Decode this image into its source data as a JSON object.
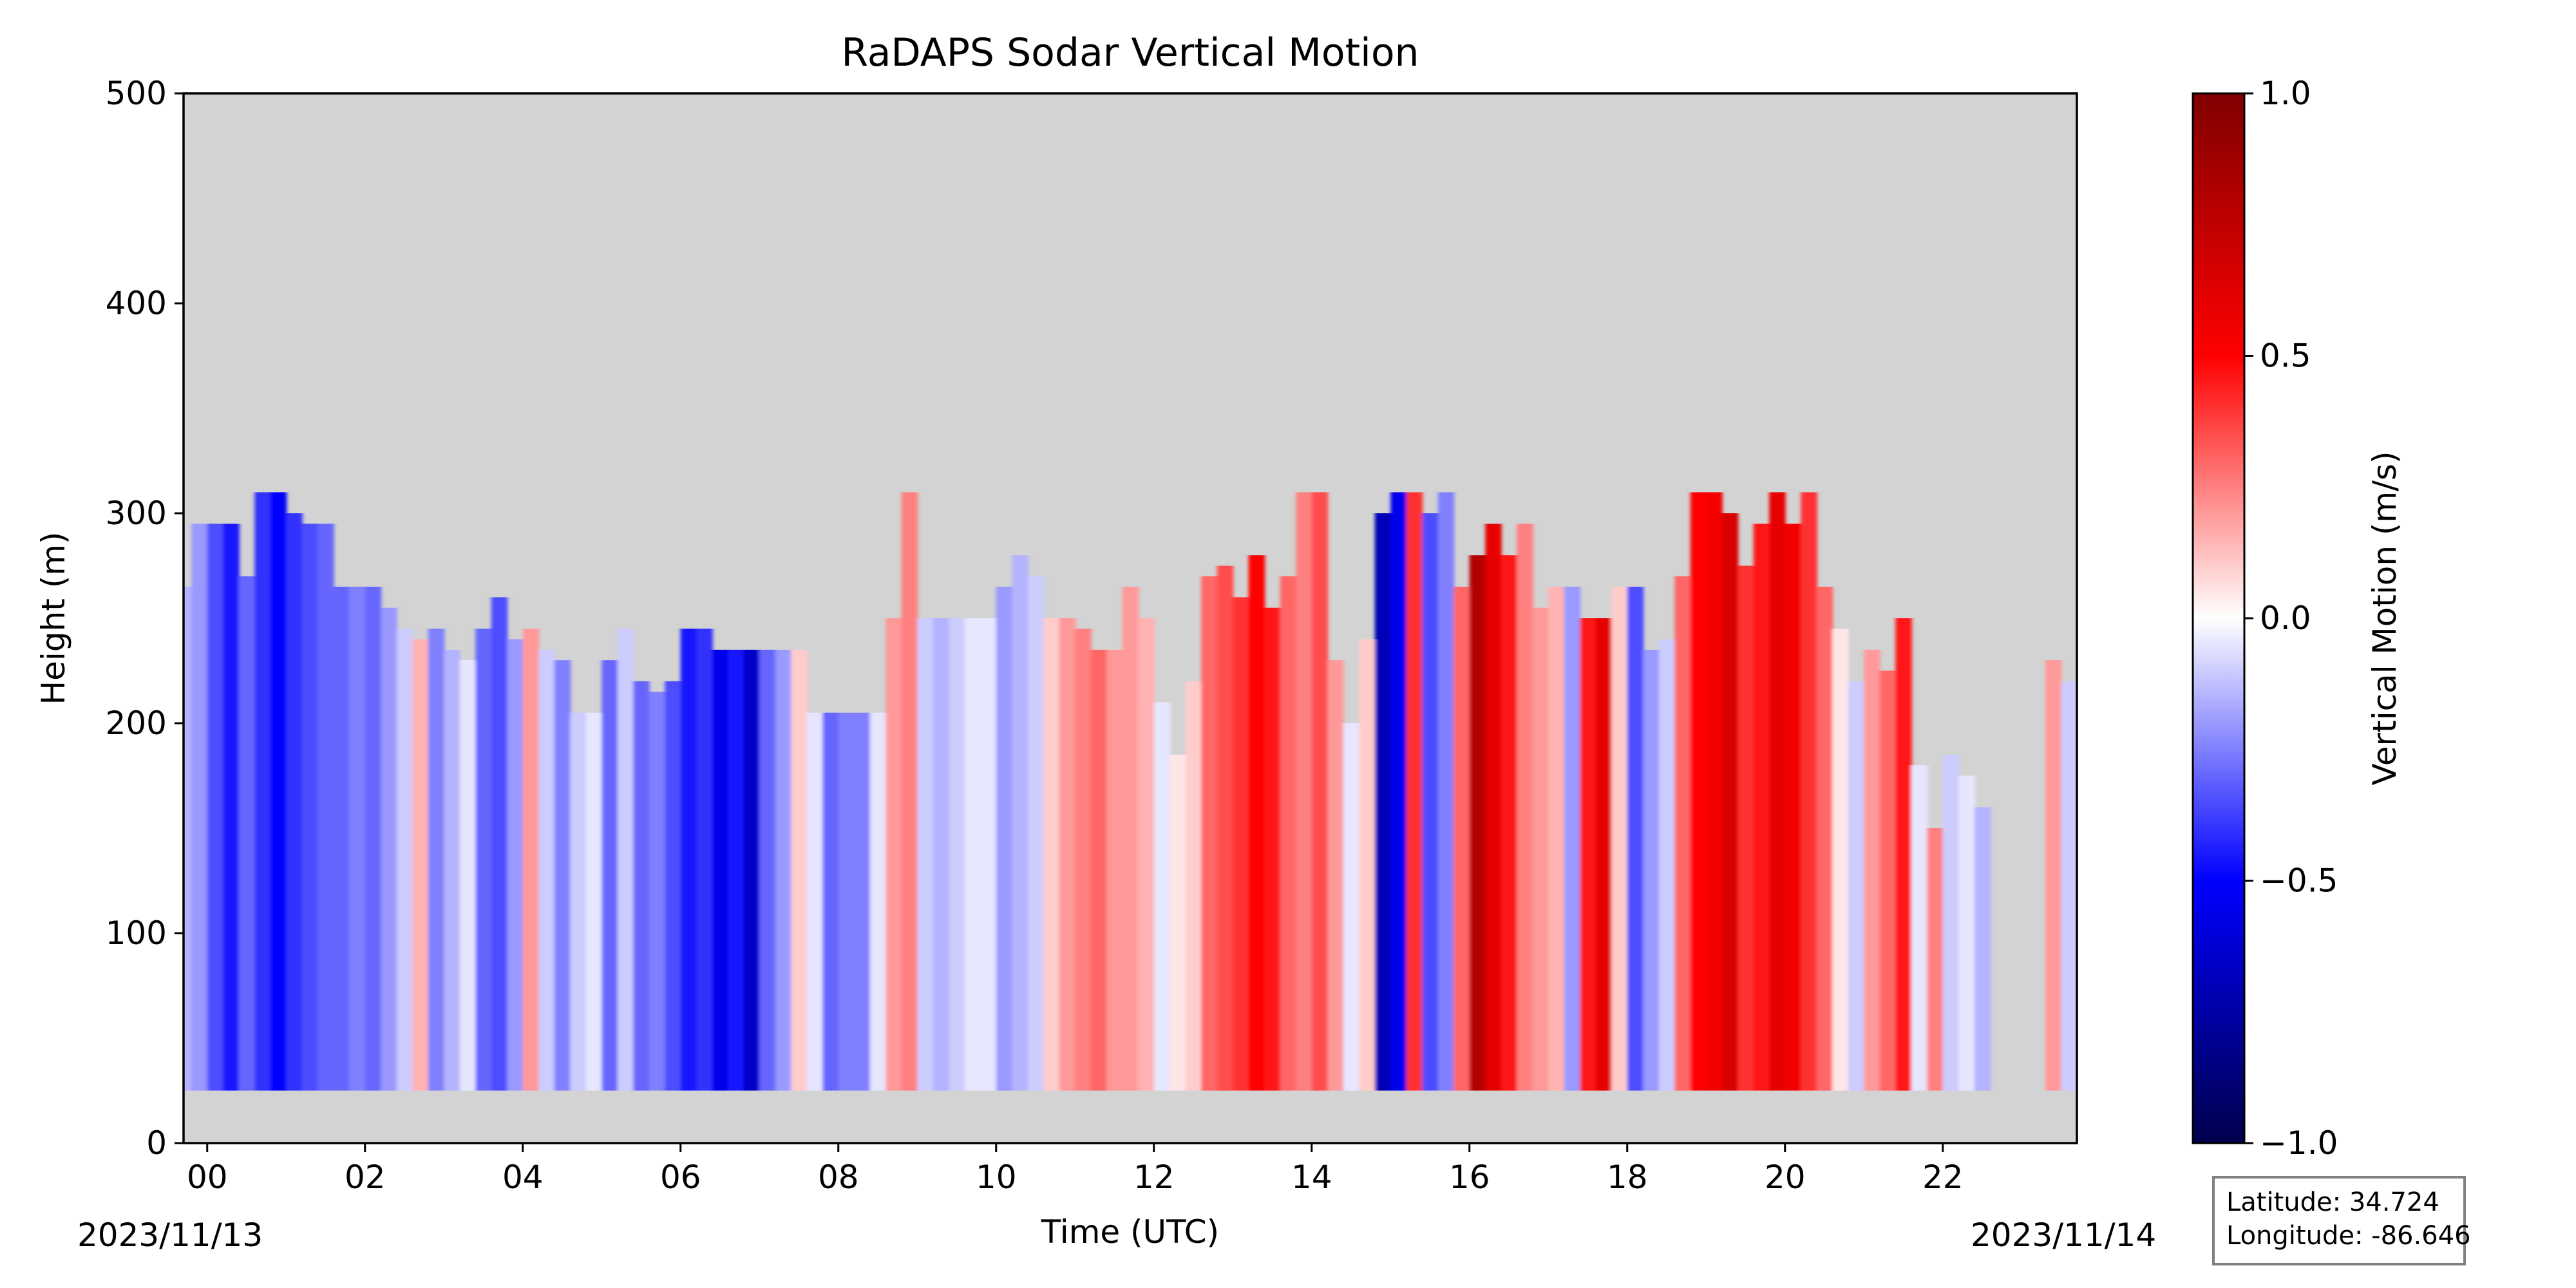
{
  "chart_data": {
    "type": "heatmap",
    "title": "RaDAPS Sodar Vertical Motion",
    "xlabel": "Time (UTC)",
    "ylabel": "Height (m)",
    "x_ticks": [
      "00",
      "02",
      "04",
      "06",
      "08",
      "10",
      "12",
      "14",
      "16",
      "18",
      "20",
      "22"
    ],
    "x_tick_hours": [
      0,
      2,
      4,
      6,
      8,
      10,
      12,
      14,
      16,
      18,
      20,
      22
    ],
    "xlim_hours": [
      -0.3,
      23.7
    ],
    "start_date": "2023/11/13",
    "end_date": "2023/11/14",
    "y_ticks": [
      0,
      100,
      200,
      300,
      400,
      500
    ],
    "ylim": [
      0,
      500
    ],
    "colorbar": {
      "label": "Vertical Motion (m/s)",
      "ticks": [
        "1.0",
        "0.5",
        "0.0",
        "−0.5",
        "−1.0"
      ],
      "tick_values": [
        1.0,
        0.5,
        0.0,
        -0.5,
        -1.0
      ],
      "range": [
        -1.0,
        1.0
      ],
      "colormap": "seismic",
      "colors": [
        "#00004c",
        "#0000ff",
        "#ffffff",
        "#ff0000",
        "#800000"
      ]
    },
    "background_color": "#d3d3d3",
    "data_bottom_m": 25,
    "data_gaps_hours": [
      [
        22.5,
        23.4
      ]
    ],
    "columns": [
      {
        "t": -0.3,
        "top": 265,
        "v": -0.15
      },
      {
        "t": -0.1,
        "top": 295,
        "v": -0.2
      },
      {
        "t": 0.1,
        "top": 295,
        "v": -0.35
      },
      {
        "t": 0.3,
        "top": 295,
        "v": -0.45
      },
      {
        "t": 0.5,
        "top": 270,
        "v": -0.3
      },
      {
        "t": 0.7,
        "top": 310,
        "v": -0.4
      },
      {
        "t": 0.9,
        "top": 310,
        "v": -0.5
      },
      {
        "t": 1.1,
        "top": 300,
        "v": -0.4
      },
      {
        "t": 1.3,
        "top": 295,
        "v": -0.35
      },
      {
        "t": 1.5,
        "top": 295,
        "v": -0.3
      },
      {
        "t": 1.7,
        "top": 265,
        "v": -0.3
      },
      {
        "t": 1.9,
        "top": 265,
        "v": -0.25
      },
      {
        "t": 2.1,
        "top": 265,
        "v": -0.3
      },
      {
        "t": 2.3,
        "top": 255,
        "v": -0.2
      },
      {
        "t": 2.5,
        "top": 245,
        "v": -0.1
      },
      {
        "t": 2.7,
        "top": 240,
        "v": 0.15
      },
      {
        "t": 2.9,
        "top": 245,
        "v": -0.25
      },
      {
        "t": 3.1,
        "top": 235,
        "v": -0.15
      },
      {
        "t": 3.3,
        "top": 230,
        "v": -0.05
      },
      {
        "t": 3.5,
        "top": 245,
        "v": -0.3
      },
      {
        "t": 3.7,
        "top": 260,
        "v": -0.35
      },
      {
        "t": 3.9,
        "top": 240,
        "v": -0.2
      },
      {
        "t": 4.1,
        "top": 245,
        "v": 0.2
      },
      {
        "t": 4.3,
        "top": 235,
        "v": -0.1
      },
      {
        "t": 4.5,
        "top": 230,
        "v": -0.25
      },
      {
        "t": 4.7,
        "top": 205,
        "v": -0.1
      },
      {
        "t": 4.9,
        "top": 205,
        "v": -0.05
      },
      {
        "t": 5.1,
        "top": 230,
        "v": -0.3
      },
      {
        "t": 5.3,
        "top": 245,
        "v": -0.1
      },
      {
        "t": 5.5,
        "top": 220,
        "v": -0.3
      },
      {
        "t": 5.7,
        "top": 215,
        "v": -0.25
      },
      {
        "t": 5.9,
        "top": 220,
        "v": -0.35
      },
      {
        "t": 6.1,
        "top": 245,
        "v": -0.45
      },
      {
        "t": 6.3,
        "top": 245,
        "v": -0.4
      },
      {
        "t": 6.5,
        "top": 235,
        "v": -0.55
      },
      {
        "t": 6.7,
        "top": 235,
        "v": -0.45
      },
      {
        "t": 6.9,
        "top": 235,
        "v": -0.65
      },
      {
        "t": 7.1,
        "top": 235,
        "v": -0.3
      },
      {
        "t": 7.3,
        "top": 235,
        "v": -0.2
      },
      {
        "t": 7.5,
        "top": 235,
        "v": 0.1
      },
      {
        "t": 7.7,
        "top": 205,
        "v": -0.05
      },
      {
        "t": 7.9,
        "top": 205,
        "v": -0.3
      },
      {
        "t": 8.1,
        "top": 205,
        "v": -0.25
      },
      {
        "t": 8.3,
        "top": 205,
        "v": -0.25
      },
      {
        "t": 8.5,
        "top": 205,
        "v": -0.05
      },
      {
        "t": 8.7,
        "top": 250,
        "v": 0.2
      },
      {
        "t": 8.9,
        "top": 310,
        "v": 0.25
      },
      {
        "t": 9.1,
        "top": 250,
        "v": -0.1
      },
      {
        "t": 9.3,
        "top": 250,
        "v": -0.15
      },
      {
        "t": 9.5,
        "top": 250,
        "v": -0.1
      },
      {
        "t": 9.7,
        "top": 250,
        "v": -0.05
      },
      {
        "t": 9.9,
        "top": 250,
        "v": -0.05
      },
      {
        "t": 10.1,
        "top": 265,
        "v": -0.2
      },
      {
        "t": 10.3,
        "top": 280,
        "v": -0.15
      },
      {
        "t": 10.5,
        "top": 270,
        "v": -0.1
      },
      {
        "t": 10.7,
        "top": 250,
        "v": 0.1
      },
      {
        "t": 10.9,
        "top": 250,
        "v": 0.2
      },
      {
        "t": 11.1,
        "top": 245,
        "v": 0.25
      },
      {
        "t": 11.3,
        "top": 235,
        "v": 0.3
      },
      {
        "t": 11.5,
        "top": 235,
        "v": 0.2
      },
      {
        "t": 11.7,
        "top": 265,
        "v": 0.2
      },
      {
        "t": 11.9,
        "top": 250,
        "v": 0.15
      },
      {
        "t": 12.1,
        "top": 210,
        "v": -0.05
      },
      {
        "t": 12.3,
        "top": 185,
        "v": 0.05
      },
      {
        "t": 12.5,
        "top": 220,
        "v": 0.1
      },
      {
        "t": 12.7,
        "top": 270,
        "v": 0.3
      },
      {
        "t": 12.9,
        "top": 275,
        "v": 0.35
      },
      {
        "t": 13.1,
        "top": 260,
        "v": 0.4
      },
      {
        "t": 13.3,
        "top": 280,
        "v": 0.5
      },
      {
        "t": 13.5,
        "top": 255,
        "v": 0.45
      },
      {
        "t": 13.7,
        "top": 270,
        "v": 0.3
      },
      {
        "t": 13.9,
        "top": 310,
        "v": 0.25
      },
      {
        "t": 14.1,
        "top": 310,
        "v": 0.35
      },
      {
        "t": 14.3,
        "top": 230,
        "v": 0.2
      },
      {
        "t": 14.5,
        "top": 200,
        "v": -0.05
      },
      {
        "t": 14.7,
        "top": 240,
        "v": 0.1
      },
      {
        "t": 14.9,
        "top": 300,
        "v": -0.7
      },
      {
        "t": 15.1,
        "top": 310,
        "v": -0.55
      },
      {
        "t": 15.3,
        "top": 310,
        "v": 0.4
      },
      {
        "t": 15.5,
        "top": 300,
        "v": -0.35
      },
      {
        "t": 15.7,
        "top": 310,
        "v": -0.25
      },
      {
        "t": 15.9,
        "top": 265,
        "v": 0.3
      },
      {
        "t": 16.1,
        "top": 280,
        "v": 0.8
      },
      {
        "t": 16.3,
        "top": 295,
        "v": 0.6
      },
      {
        "t": 16.5,
        "top": 280,
        "v": 0.45
      },
      {
        "t": 16.7,
        "top": 295,
        "v": 0.25
      },
      {
        "t": 16.9,
        "top": 255,
        "v": 0.2
      },
      {
        "t": 17.1,
        "top": 265,
        "v": 0.15
      },
      {
        "t": 17.3,
        "top": 265,
        "v": -0.2
      },
      {
        "t": 17.5,
        "top": 250,
        "v": 0.45
      },
      {
        "t": 17.7,
        "top": 250,
        "v": 0.6
      },
      {
        "t": 17.9,
        "top": 265,
        "v": 0.1
      },
      {
        "t": 18.1,
        "top": 265,
        "v": -0.35
      },
      {
        "t": 18.3,
        "top": 235,
        "v": -0.2
      },
      {
        "t": 18.5,
        "top": 240,
        "v": -0.1
      },
      {
        "t": 18.7,
        "top": 270,
        "v": 0.3
      },
      {
        "t": 18.9,
        "top": 310,
        "v": 0.5
      },
      {
        "t": 19.1,
        "top": 310,
        "v": 0.55
      },
      {
        "t": 19.3,
        "top": 300,
        "v": 0.65
      },
      {
        "t": 19.5,
        "top": 275,
        "v": 0.4
      },
      {
        "t": 19.7,
        "top": 295,
        "v": 0.45
      },
      {
        "t": 19.9,
        "top": 310,
        "v": 0.6
      },
      {
        "t": 20.1,
        "top": 295,
        "v": 0.55
      },
      {
        "t": 20.3,
        "top": 310,
        "v": 0.4
      },
      {
        "t": 20.5,
        "top": 265,
        "v": 0.3
      },
      {
        "t": 20.7,
        "top": 245,
        "v": 0.05
      },
      {
        "t": 20.9,
        "top": 220,
        "v": -0.1
      },
      {
        "t": 21.1,
        "top": 235,
        "v": 0.2
      },
      {
        "t": 21.3,
        "top": 225,
        "v": 0.3
      },
      {
        "t": 21.5,
        "top": 250,
        "v": 0.45
      },
      {
        "t": 21.7,
        "top": 180,
        "v": -0.05
      },
      {
        "t": 21.9,
        "top": 150,
        "v": 0.25
      },
      {
        "t": 22.1,
        "top": 185,
        "v": -0.1
      },
      {
        "t": 22.3,
        "top": 175,
        "v": -0.05
      },
      {
        "t": 22.5,
        "top": 160,
        "v": -0.15
      },
      {
        "t": 23.4,
        "top": 230,
        "v": 0.2
      },
      {
        "t": 23.6,
        "top": 220,
        "v": -0.1
      }
    ]
  },
  "info_box": {
    "latitude": "Latitude: 34.724",
    "longitude": "Longitude: -86.646"
  }
}
